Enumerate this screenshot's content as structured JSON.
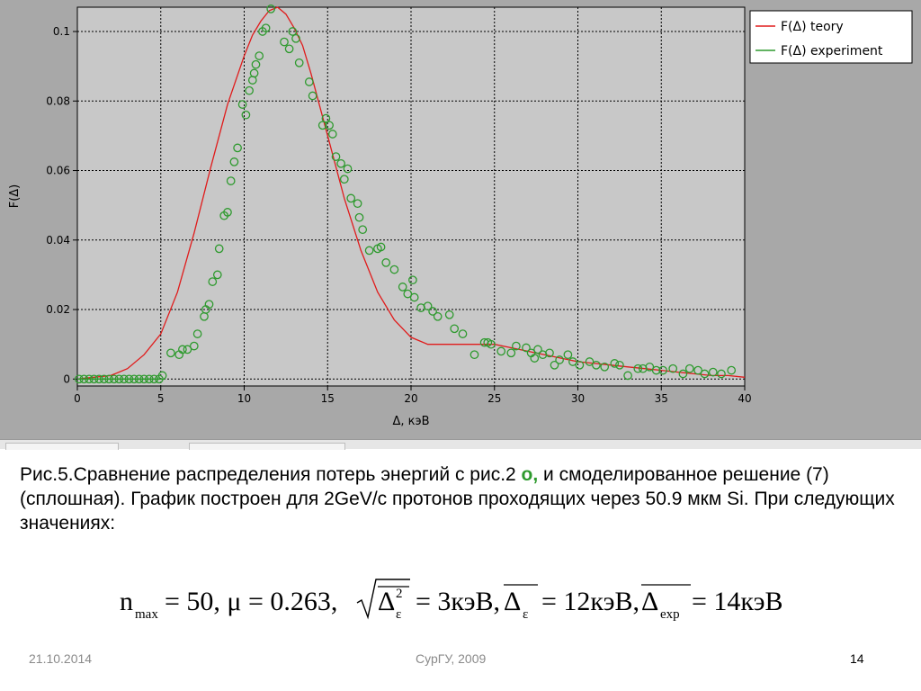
{
  "chart_data": {
    "type": "line",
    "xlabel": "Δ, кэВ",
    "ylabel": "F(Δ)",
    "xlim": [
      0,
      40
    ],
    "ylim": [
      -0.002,
      0.107
    ],
    "xticks": [
      "0",
      "5",
      "10",
      "15",
      "20",
      "25",
      "30",
      "35",
      "40"
    ],
    "yticks": [
      "0",
      "0.02",
      "0.04",
      "0.06",
      "0.08",
      "0.1"
    ],
    "grid": true,
    "legend_position": "top-right",
    "series": [
      {
        "name": "F(Δ) teory",
        "style": "line",
        "color": "#e01b1b",
        "x": [
          0,
          1,
          2,
          3,
          4,
          5,
          6,
          7,
          8,
          9,
          10,
          10.5,
          11,
          11.5,
          12,
          12.5,
          13,
          13.5,
          14,
          15,
          16,
          17,
          18,
          19,
          20,
          21,
          22,
          23,
          24,
          25,
          26,
          27,
          28,
          29,
          30,
          31,
          32,
          33,
          34,
          35,
          36,
          37,
          38,
          39,
          40
        ],
        "y": [
          0,
          0.0005,
          0.001,
          0.003,
          0.007,
          0.013,
          0.025,
          0.042,
          0.061,
          0.079,
          0.093,
          0.099,
          0.103,
          0.106,
          0.107,
          0.105,
          0.101,
          0.096,
          0.088,
          0.07,
          0.052,
          0.037,
          0.025,
          0.017,
          0.012,
          0.01,
          0.01,
          0.01,
          0.01,
          0.01,
          0.009,
          0.008,
          0.007,
          0.006,
          0.005,
          0.0045,
          0.004,
          0.0035,
          0.003,
          0.0025,
          0.002,
          0.0015,
          0.001,
          0.001,
          0.0005
        ]
      },
      {
        "name": "F(Δ) experiment",
        "style": "markers",
        "color": "#2e9a2e",
        "points": [
          [
            0.1,
            0
          ],
          [
            0.4,
            0
          ],
          [
            0.7,
            0
          ],
          [
            1.0,
            0
          ],
          [
            1.3,
            0
          ],
          [
            1.6,
            0
          ],
          [
            1.9,
            0
          ],
          [
            2.2,
            0
          ],
          [
            2.5,
            0
          ],
          [
            2.8,
            0
          ],
          [
            3.1,
            0
          ],
          [
            3.4,
            0
          ],
          [
            3.7,
            0
          ],
          [
            4.0,
            0
          ],
          [
            4.3,
            0
          ],
          [
            4.6,
            0
          ],
          [
            4.9,
            0
          ],
          [
            5.1,
            0.001
          ],
          [
            5.6,
            0.0075
          ],
          [
            6.1,
            0.007
          ],
          [
            6.3,
            0.0085
          ],
          [
            6.6,
            0.0085
          ],
          [
            7.0,
            0.0095
          ],
          [
            7.2,
            0.013
          ],
          [
            7.6,
            0.018
          ],
          [
            7.7,
            0.02
          ],
          [
            7.9,
            0.0215
          ],
          [
            8.1,
            0.028
          ],
          [
            8.4,
            0.03
          ],
          [
            8.5,
            0.0375
          ],
          [
            8.8,
            0.047
          ],
          [
            9.0,
            0.048
          ],
          [
            9.2,
            0.057
          ],
          [
            9.4,
            0.0625
          ],
          [
            9.6,
            0.0665
          ],
          [
            9.9,
            0.079
          ],
          [
            10.1,
            0.076
          ],
          [
            10.3,
            0.083
          ],
          [
            10.5,
            0.086
          ],
          [
            10.6,
            0.088
          ],
          [
            10.7,
            0.0905
          ],
          [
            10.9,
            0.093
          ],
          [
            11.1,
            0.1
          ],
          [
            11.3,
            0.101
          ],
          [
            11.6,
            0.1065
          ],
          [
            12.4,
            0.097
          ],
          [
            12.7,
            0.095
          ],
          [
            12.9,
            0.1
          ],
          [
            13.1,
            0.098
          ],
          [
            13.3,
            0.091
          ],
          [
            13.9,
            0.0855
          ],
          [
            14.1,
            0.0815
          ],
          [
            14.7,
            0.073
          ],
          [
            14.9,
            0.075
          ],
          [
            15.1,
            0.073
          ],
          [
            15.3,
            0.0705
          ],
          [
            15.5,
            0.064
          ],
          [
            15.8,
            0.062
          ],
          [
            16.0,
            0.0575
          ],
          [
            16.2,
            0.0605
          ],
          [
            16.4,
            0.052
          ],
          [
            16.8,
            0.0505
          ],
          [
            16.9,
            0.0465
          ],
          [
            17.1,
            0.043
          ],
          [
            17.5,
            0.037
          ],
          [
            18.0,
            0.0375
          ],
          [
            18.2,
            0.038
          ],
          [
            18.5,
            0.0335
          ],
          [
            19.0,
            0.0315
          ],
          [
            19.5,
            0.0265
          ],
          [
            19.8,
            0.0245
          ],
          [
            20.1,
            0.0285
          ],
          [
            20.2,
            0.0235
          ],
          [
            20.6,
            0.0205
          ],
          [
            21.0,
            0.021
          ],
          [
            21.3,
            0.0195
          ],
          [
            21.6,
            0.018
          ],
          [
            22.3,
            0.0185
          ],
          [
            22.6,
            0.0145
          ],
          [
            23.1,
            0.013
          ],
          [
            23.8,
            0.007
          ],
          [
            24.4,
            0.0105
          ],
          [
            24.6,
            0.0105
          ],
          [
            24.8,
            0.01
          ],
          [
            25.4,
            0.008
          ],
          [
            26.0,
            0.0075
          ],
          [
            26.3,
            0.0095
          ],
          [
            26.9,
            0.009
          ],
          [
            27.2,
            0.0075
          ],
          [
            27.4,
            0.006
          ],
          [
            27.6,
            0.0085
          ],
          [
            27.9,
            0.007
          ],
          [
            28.3,
            0.0075
          ],
          [
            28.6,
            0.004
          ],
          [
            28.9,
            0.0055
          ],
          [
            29.4,
            0.007
          ],
          [
            29.7,
            0.005
          ],
          [
            30.1,
            0.004
          ],
          [
            30.7,
            0.005
          ],
          [
            31.1,
            0.004
          ],
          [
            31.6,
            0.0035
          ],
          [
            32.2,
            0.0045
          ],
          [
            32.5,
            0.004
          ],
          [
            33.0,
            0.001
          ],
          [
            33.6,
            0.003
          ],
          [
            33.9,
            0.003
          ],
          [
            34.3,
            0.0035
          ],
          [
            34.7,
            0.0025
          ],
          [
            35.1,
            0.0025
          ],
          [
            35.7,
            0.003
          ],
          [
            36.3,
            0.0015
          ],
          [
            36.7,
            0.003
          ],
          [
            37.2,
            0.0025
          ],
          [
            37.6,
            0.0015
          ],
          [
            38.1,
            0.002
          ],
          [
            38.6,
            0.0015
          ],
          [
            39.2,
            0.0025
          ]
        ]
      }
    ]
  },
  "caption": {
    "line1_before": "Рис.5.Сравнение распределения потерь энергий с рис.2 ",
    "marker": "o,",
    "line1_after": " и смоделированное решение (7) (сплошная). График построен для 2GeV/с протонов проходящих через 50.9 мкм Si. При следующих значениях:"
  },
  "formula": {
    "n": "n",
    "n_sub": "max",
    "part1": "= 50, μ = 0.263,",
    "delta": "Δ",
    "sq_sup": "2",
    "eps_sub": "ε",
    "part2": "= 3кэВ,",
    "part3": "= 12кэВ,",
    "exp_sub": "exp",
    "part4": "= 14кэВ"
  },
  "footer": {
    "date": "21.10.2014",
    "org": "СурГУ, 2009",
    "page": "14"
  }
}
